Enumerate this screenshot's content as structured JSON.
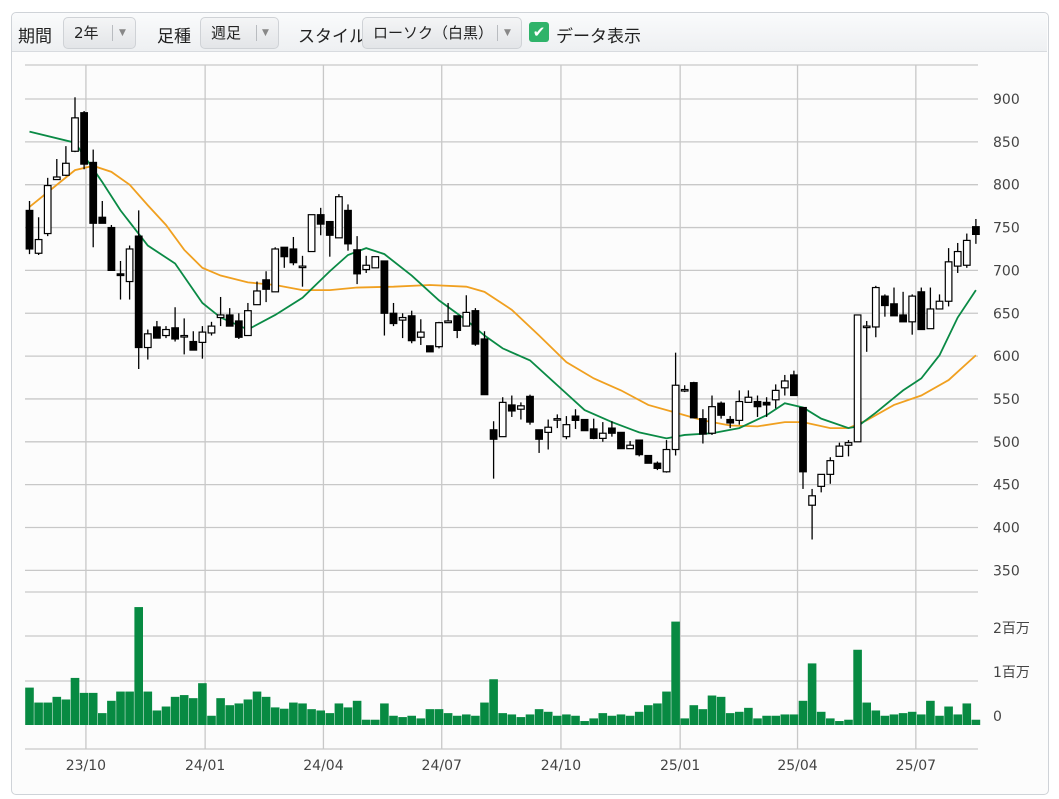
{
  "toolbar": {
    "period_label": "期間",
    "period_value": "2年",
    "interval_label": "足種",
    "interval_value": "週足",
    "style_label": "スタイル",
    "style_value": "ローソク（白黒）",
    "show_data_label": "データ表示",
    "show_data_checked": true
  },
  "colors": {
    "ma_short": "#0a8a45",
    "ma_long": "#f0a020",
    "volume": "#078a42",
    "candle_down": "#000000",
    "candle_up": "#ffffff"
  },
  "chart_data": {
    "type": "candlestick",
    "price_axis": {
      "ticks": [
        "900",
        "850",
        "800",
        "750",
        "700",
        "650",
        "600",
        "550",
        "500",
        "450",
        "400",
        "350"
      ],
      "values": [
        900,
        850,
        800,
        750,
        700,
        650,
        600,
        550,
        500,
        450,
        400,
        350
      ]
    },
    "volume_axis": {
      "ticks": [
        "2百万",
        "1百万",
        "0"
      ],
      "values": [
        2,
        1,
        0
      ],
      "unit": "百万"
    },
    "x_ticks": [
      {
        "label": "23/10",
        "index": 6.2
      },
      {
        "label": "24/01",
        "index": 19.3
      },
      {
        "label": "24/04",
        "index": 32.3
      },
      {
        "label": "24/07",
        "index": 45.3
      },
      {
        "label": "24/10",
        "index": 58.4
      },
      {
        "label": "25/01",
        "index": 71.5
      },
      {
        "label": "25/04",
        "index": 84.4
      },
      {
        "label": "25/07",
        "index": 97.4
      }
    ],
    "ohlc_fields": [
      "open",
      "high",
      "low",
      "close"
    ],
    "candles": [
      [
        770,
        781,
        719,
        725
      ],
      [
        720,
        762,
        718,
        736
      ],
      [
        743,
        808,
        740,
        799
      ],
      [
        806,
        830,
        806,
        809
      ],
      [
        811,
        845,
        810,
        825
      ],
      [
        839,
        902,
        838,
        878
      ],
      [
        884,
        886,
        818,
        824
      ],
      [
        826,
        841,
        727,
        755
      ],
      [
        762,
        781,
        755,
        755
      ],
      [
        750,
        753,
        700,
        700
      ],
      [
        696,
        711,
        666,
        694
      ],
      [
        687,
        729,
        666,
        725
      ],
      [
        740,
        770,
        585,
        610
      ],
      [
        610,
        631,
        596,
        626
      ],
      [
        634,
        641,
        621,
        621
      ],
      [
        624,
        635,
        621,
        631
      ],
      [
        633,
        657,
        617,
        620
      ],
      [
        624,
        644,
        602,
        624
      ],
      [
        617,
        629,
        607,
        607
      ],
      [
        616,
        635,
        597,
        628
      ],
      [
        627,
        640,
        624,
        635
      ],
      [
        645,
        669,
        635,
        648
      ],
      [
        648,
        656,
        635,
        635
      ],
      [
        641,
        650,
        620,
        622
      ],
      [
        624,
        662,
        624,
        653
      ],
      [
        660,
        687,
        660,
        676
      ],
      [
        689,
        699,
        663,
        678
      ],
      [
        675,
        727,
        675,
        725
      ],
      [
        727,
        727,
        703,
        716
      ],
      [
        725,
        739,
        706,
        709
      ],
      [
        705,
        717,
        681,
        705
      ],
      [
        722,
        765,
        722,
        765
      ],
      [
        765,
        773,
        741,
        754
      ],
      [
        757,
        757,
        716,
        741
      ],
      [
        738,
        789,
        738,
        786
      ],
      [
        770,
        777,
        723,
        731
      ],
      [
        724,
        740,
        684,
        696
      ],
      [
        701,
        717,
        697,
        706
      ],
      [
        703,
        716,
        703,
        716
      ],
      [
        711,
        711,
        624,
        650
      ],
      [
        650,
        662,
        635,
        638
      ],
      [
        642,
        650,
        621,
        645
      ],
      [
        647,
        653,
        615,
        618
      ],
      [
        622,
        643,
        613,
        628
      ],
      [
        612,
        612,
        605,
        605
      ],
      [
        611,
        640,
        609,
        639
      ],
      [
        639,
        662,
        639,
        641
      ],
      [
        647,
        647,
        621,
        630
      ],
      [
        635,
        671,
        635,
        651
      ],
      [
        653,
        656,
        612,
        614
      ],
      [
        620,
        629,
        555,
        555
      ],
      [
        514,
        524,
        457,
        503
      ],
      [
        506,
        552,
        506,
        546
      ],
      [
        543,
        554,
        529,
        536
      ],
      [
        538,
        546,
        526,
        542
      ],
      [
        553,
        555,
        520,
        523
      ],
      [
        514,
        514,
        487,
        503
      ],
      [
        511,
        526,
        491,
        517
      ],
      [
        527,
        532,
        516,
        527
      ],
      [
        506,
        530,
        503,
        520
      ],
      [
        530,
        538,
        515,
        525
      ],
      [
        526,
        526,
        513,
        513
      ],
      [
        515,
        527,
        503,
        504
      ],
      [
        504,
        523,
        500,
        510
      ],
      [
        516,
        524,
        506,
        510
      ],
      [
        511,
        511,
        492,
        492
      ],
      [
        492,
        501,
        492,
        496
      ],
      [
        502,
        502,
        483,
        485
      ],
      [
        484,
        484,
        475,
        475
      ],
      [
        475,
        477,
        467,
        469
      ],
      [
        465,
        502,
        464,
        491
      ],
      [
        491,
        604,
        484,
        566
      ],
      [
        561,
        566,
        558,
        561
      ],
      [
        569,
        570,
        528,
        528
      ],
      [
        527,
        538,
        498,
        509
      ],
      [
        510,
        554,
        508,
        541
      ],
      [
        545,
        547,
        527,
        531
      ],
      [
        526,
        530,
        516,
        522
      ],
      [
        525,
        560,
        520,
        547
      ],
      [
        546,
        560,
        546,
        552
      ],
      [
        547,
        554,
        529,
        541
      ],
      [
        546,
        552,
        529,
        543
      ],
      [
        549,
        567,
        539,
        560
      ],
      [
        563,
        578,
        554,
        571
      ],
      [
        578,
        583,
        554,
        554
      ],
      [
        540,
        540,
        445,
        465
      ],
      [
        426,
        445,
        386,
        437
      ],
      [
        448,
        462,
        441,
        462
      ],
      [
        462,
        482,
        451,
        478
      ],
      [
        483,
        499,
        483,
        495
      ],
      [
        496,
        502,
        483,
        499
      ],
      [
        500,
        648,
        500,
        648
      ],
      [
        635,
        641,
        605,
        635
      ],
      [
        634,
        682,
        622,
        680
      ],
      [
        670,
        672,
        646,
        659
      ],
      [
        661,
        680,
        647,
        647
      ],
      [
        648,
        675,
        640,
        640
      ],
      [
        640,
        672,
        625,
        670
      ],
      [
        675,
        680,
        631,
        631
      ],
      [
        632,
        680,
        632,
        655
      ],
      [
        655,
        672,
        655,
        664
      ],
      [
        664,
        726,
        658,
        710
      ],
      [
        705,
        732,
        697,
        722
      ],
      [
        706,
        743,
        703,
        735
      ],
      [
        751,
        760,
        731,
        742
      ]
    ],
    "volume_millions": [
      0.85,
      0.51,
      0.51,
      0.64,
      0.58,
      1.07,
      0.73,
      0.73,
      0.27,
      0.55,
      0.76,
      0.76,
      2.68,
      0.76,
      0.33,
      0.42,
      0.64,
      0.68,
      0.61,
      0.95,
      0.21,
      0.61,
      0.45,
      0.49,
      0.58,
      0.76,
      0.64,
      0.4,
      0.37,
      0.51,
      0.49,
      0.36,
      0.33,
      0.27,
      0.49,
      0.4,
      0.55,
      0.12,
      0.12,
      0.49,
      0.21,
      0.18,
      0.21,
      0.15,
      0.36,
      0.36,
      0.27,
      0.21,
      0.24,
      0.21,
      0.51,
      1.04,
      0.27,
      0.24,
      0.18,
      0.24,
      0.36,
      0.3,
      0.21,
      0.24,
      0.21,
      0.09,
      0.15,
      0.27,
      0.21,
      0.24,
      0.21,
      0.3,
      0.45,
      0.49,
      0.76,
      2.35,
      0.15,
      0.45,
      0.36,
      0.67,
      0.64,
      0.27,
      0.3,
      0.39,
      0.15,
      0.21,
      0.21,
      0.24,
      0.24,
      0.55,
      1.4,
      0.3,
      0.15,
      0.09,
      0.12,
      1.71,
      0.51,
      0.33,
      0.21,
      0.24,
      0.27,
      0.3,
      0.24,
      0.55,
      0.21,
      0.42,
      0.24,
      0.49,
      0.12
    ],
    "ma_short": [
      [
        0,
        862
      ],
      [
        5,
        849
      ],
      [
        8,
        803
      ],
      [
        10,
        770
      ],
      [
        13,
        729
      ],
      [
        16,
        708
      ],
      [
        19,
        662
      ],
      [
        21,
        645
      ],
      [
        24,
        631
      ],
      [
        27,
        648
      ],
      [
        30,
        668
      ],
      [
        33,
        699
      ],
      [
        35,
        718
      ],
      [
        37,
        726
      ],
      [
        39,
        719
      ],
      [
        42,
        694
      ],
      [
        45,
        665
      ],
      [
        48,
        642
      ],
      [
        50,
        624
      ],
      [
        52,
        609
      ],
      [
        55,
        595
      ],
      [
        58,
        566
      ],
      [
        61,
        537
      ],
      [
        64,
        523
      ],
      [
        67,
        511
      ],
      [
        70,
        504
      ],
      [
        72,
        508
      ],
      [
        75,
        510
      ],
      [
        78,
        516
      ],
      [
        81,
        531
      ],
      [
        83,
        545
      ],
      [
        85,
        540
      ],
      [
        87,
        527
      ],
      [
        90,
        516
      ],
      [
        91,
        518
      ],
      [
        93,
        534
      ],
      [
        96,
        560
      ],
      [
        98,
        574
      ],
      [
        100,
        601
      ],
      [
        102,
        645
      ],
      [
        104,
        677
      ]
    ],
    "ma_long": [
      [
        0,
        774
      ],
      [
        5,
        817
      ],
      [
        7,
        822
      ],
      [
        9,
        815
      ],
      [
        11,
        800
      ],
      [
        13,
        776
      ],
      [
        15,
        753
      ],
      [
        17,
        724
      ],
      [
        19,
        703
      ],
      [
        21,
        694
      ],
      [
        24,
        686
      ],
      [
        27,
        683
      ],
      [
        30,
        677
      ],
      [
        33,
        677
      ],
      [
        36,
        680
      ],
      [
        40,
        681
      ],
      [
        44,
        683
      ],
      [
        48,
        681
      ],
      [
        50,
        675
      ],
      [
        53,
        654
      ],
      [
        56,
        624
      ],
      [
        59,
        593
      ],
      [
        62,
        574
      ],
      [
        65,
        560
      ],
      [
        68,
        543
      ],
      [
        71,
        534
      ],
      [
        74,
        525
      ],
      [
        77,
        519
      ],
      [
        80,
        518
      ],
      [
        83,
        523
      ],
      [
        85,
        523
      ],
      [
        88,
        516
      ],
      [
        90,
        516
      ],
      [
        92,
        525
      ],
      [
        95,
        543
      ],
      [
        98,
        554
      ],
      [
        101,
        572
      ],
      [
        104,
        601
      ]
    ]
  }
}
